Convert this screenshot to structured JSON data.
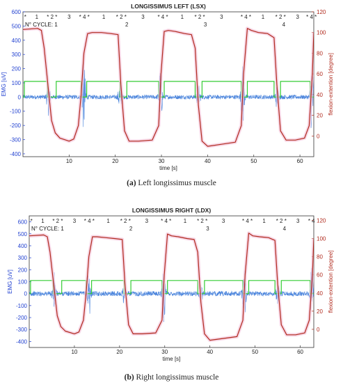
{
  "chart_data": [
    {
      "type": "line",
      "title": "LONGISSIMUS LEFT (LSX)",
      "xlabel": "time [s]",
      "ylabel_left": "EMG [uV]",
      "ylabel_right": "flexion-extention [degree]",
      "xlim": [
        0,
        63
      ],
      "ylim_left": [
        -420,
        600
      ],
      "ylim_right": [
        -20,
        120
      ],
      "xticks": [
        10,
        20,
        30,
        40,
        50,
        60
      ],
      "yticks_left": [
        -400,
        -300,
        -200,
        -100,
        0,
        100,
        200,
        300,
        400,
        500,
        600
      ],
      "yticks_right": [
        0,
        20,
        40,
        60,
        80,
        100,
        120
      ],
      "cycle_label": "N° CYCLE: 1",
      "cycle_numbers": [
        {
          "x": 22.5,
          "label": "2"
        },
        {
          "x": 39.5,
          "label": "3"
        },
        {
          "x": 56.5,
          "label": "4"
        }
      ],
      "phase_labels": [
        {
          "x": 0.5,
          "label": "*"
        },
        {
          "x": 3,
          "label": "1"
        },
        {
          "x": 6.3,
          "label": "* 2 *"
        },
        {
          "x": 10,
          "label": "3"
        },
        {
          "x": 13.3,
          "label": "* 4 *"
        },
        {
          "x": 17.5,
          "label": "1"
        },
        {
          "x": 21.3,
          "label": "* 2 *"
        },
        {
          "x": 26,
          "label": "3"
        },
        {
          "x": 30.3,
          "label": "* 4 *"
        },
        {
          "x": 34.5,
          "label": "1"
        },
        {
          "x": 38.3,
          "label": "* 2 *"
        },
        {
          "x": 43,
          "label": "3"
        },
        {
          "x": 48.3,
          "label": "* 4 *"
        },
        {
          "x": 52,
          "label": "1"
        },
        {
          "x": 55.8,
          "label": "* 2 *"
        },
        {
          "x": 59.5,
          "label": "3"
        },
        {
          "x": 62.5,
          "label": "* 4 *"
        }
      ],
      "angle_curve": {
        "name": "flexion-extention",
        "x": [
          0,
          3.2,
          4.0,
          4.6,
          5.4,
          6.2,
          7.0,
          8.0,
          10.0,
          11.0,
          12.0,
          12.6,
          13.2,
          14.0,
          15.0,
          17.0,
          19.0,
          20.6,
          21.2,
          22.0,
          23.0,
          25.0,
          28.0,
          29.4,
          29.9,
          30.6,
          31.5,
          33.0,
          35.0,
          36.5,
          37.3,
          38.0,
          38.8,
          40.0,
          43.0,
          46.0,
          47.3,
          47.8,
          48.6,
          49.5,
          51.0,
          53.0,
          54.4,
          55.0,
          55.8,
          57.0,
          59.0,
          61.0,
          62.0,
          62.7,
          63.0
        ],
        "y": [
          103,
          104,
          102,
          85,
          50,
          15,
          3,
          -2,
          -5,
          -3,
          10,
          40,
          80,
          99,
          100,
          100,
          99,
          98,
          50,
          5,
          -5,
          -5,
          -4,
          10,
          60,
          101,
          102,
          101,
          99,
          98,
          85,
          30,
          -5,
          -10,
          -8,
          -6,
          10,
          60,
          104,
          102,
          100,
          99,
          95,
          50,
          5,
          -4,
          -4,
          -2,
          10,
          60,
          100
        ]
      },
      "phase_markers": {
        "name": "phase",
        "low": 0,
        "high": 110,
        "intervals": [
          [
            0.3,
            5.3
          ],
          [
            7.2,
            12.6
          ],
          [
            13.8,
            21.0
          ],
          [
            22.5,
            29.4
          ],
          [
            30.6,
            37.3
          ],
          [
            38.8,
            47.3
          ],
          [
            48.6,
            54.4
          ],
          [
            55.8,
            62.2
          ]
        ]
      },
      "emg_bursts": [
        {
          "x": 5.5,
          "amplitude": 120
        },
        {
          "x": 13.2,
          "amplitude": 260
        },
        {
          "x": 21.0,
          "amplitude": 90
        },
        {
          "x": 29.8,
          "amplitude": 220
        },
        {
          "x": 38.0,
          "amplitude": 80
        },
        {
          "x": 47.6,
          "amplitude": 220
        },
        {
          "x": 55.0,
          "amplitude": 70
        },
        {
          "x": 62.6,
          "amplitude": 280
        }
      ],
      "emg_baseline": 15
    },
    {
      "type": "line",
      "title": "LONGISSIMUS RIGHT (LDX)",
      "xlabel": "time [s]",
      "ylabel_left": "EMG [uV]",
      "ylabel_right": "flexion-extention [degree]",
      "xlim": [
        0,
        63
      ],
      "ylim_left": [
        -450,
        650
      ],
      "ylim_right": [
        -20,
        125
      ],
      "xticks": [
        10,
        20,
        30,
        40,
        50,
        60
      ],
      "yticks_left": [
        -400,
        -300,
        -200,
        -100,
        0,
        100,
        200,
        300,
        400,
        500,
        600
      ],
      "yticks_right": [
        0,
        20,
        40,
        60,
        80,
        100,
        120
      ],
      "cycle_label": "N° CYCLE: 1",
      "cycle_numbers": [
        {
          "x": 22.5,
          "label": "2"
        },
        {
          "x": 39.5,
          "label": "3"
        },
        {
          "x": 56.5,
          "label": "4"
        }
      ],
      "phase_labels": [
        {
          "x": 0.5,
          "label": "*"
        },
        {
          "x": 3,
          "label": "1"
        },
        {
          "x": 6.3,
          "label": "* 2 *"
        },
        {
          "x": 10,
          "label": "3"
        },
        {
          "x": 13.3,
          "label": "* 4 *"
        },
        {
          "x": 17.5,
          "label": "1"
        },
        {
          "x": 21.3,
          "label": "* 2 *"
        },
        {
          "x": 26,
          "label": "3"
        },
        {
          "x": 30.3,
          "label": "* 4 *"
        },
        {
          "x": 34.5,
          "label": "1"
        },
        {
          "x": 38.3,
          "label": "* 2 *"
        },
        {
          "x": 43,
          "label": "3"
        },
        {
          "x": 48.3,
          "label": "* 4 *"
        },
        {
          "x": 52,
          "label": "1"
        },
        {
          "x": 55.8,
          "label": "* 2 *"
        },
        {
          "x": 59.5,
          "label": "3"
        },
        {
          "x": 62.5,
          "label": "* 4"
        }
      ],
      "angle_curve": {
        "name": "flexion-extention",
        "x": [
          0,
          3.2,
          4.0,
          4.6,
          5.4,
          6.2,
          7.0,
          8.0,
          10.0,
          11.0,
          12.0,
          12.6,
          13.2,
          14.0,
          15.0,
          17.0,
          19.0,
          20.6,
          21.2,
          22.0,
          23.0,
          25.0,
          28.0,
          29.4,
          29.9,
          30.6,
          31.5,
          33.0,
          35.0,
          36.5,
          37.3,
          38.0,
          38.8,
          40.0,
          43.0,
          46.0,
          47.3,
          47.8,
          48.6,
          49.5,
          51.0,
          53.0,
          54.4,
          55.0,
          55.8,
          57.0,
          59.0,
          61.0,
          62.0,
          62.7,
          63.0
        ],
        "y": [
          103,
          104,
          102,
          85,
          50,
          15,
          3,
          -2,
          -5,
          -3,
          10,
          40,
          80,
          102,
          102,
          101,
          100,
          99,
          50,
          5,
          -5,
          -5,
          -4,
          10,
          60,
          105,
          103,
          102,
          100,
          99,
          85,
          30,
          -5,
          -12,
          -10,
          -8,
          10,
          60,
          106,
          103,
          102,
          101,
          98,
          50,
          5,
          -6,
          -6,
          -4,
          10,
          60,
          100
        ]
      },
      "phase_markers": {
        "name": "phase",
        "low": 0,
        "high": 110,
        "intervals": [
          [
            0.3,
            5.3
          ],
          [
            7.2,
            12.6
          ],
          [
            13.8,
            21.0
          ],
          [
            22.5,
            29.4
          ],
          [
            30.6,
            37.3
          ],
          [
            38.8,
            47.3
          ],
          [
            48.6,
            54.4
          ],
          [
            55.8,
            62.2
          ]
        ]
      },
      "emg_bursts": [
        {
          "x": 5.5,
          "amplitude": 160
        },
        {
          "x": 13.2,
          "amplitude": 240
        },
        {
          "x": 21.0,
          "amplitude": 90
        },
        {
          "x": 29.8,
          "amplitude": 230
        },
        {
          "x": 38.0,
          "amplitude": 80
        },
        {
          "x": 47.6,
          "amplitude": 230
        },
        {
          "x": 55.0,
          "amplitude": 70
        },
        {
          "x": 62.6,
          "amplitude": 260
        }
      ],
      "emg_baseline": 20
    }
  ],
  "captions": [
    {
      "tag": "(a)",
      "text": "Left longissimus muscle"
    },
    {
      "tag": "(b)",
      "text": "Right longissimus muscle"
    }
  ],
  "colors": {
    "emg": "#2a6fd6",
    "angle": "#b0291c",
    "phase": "#33cc33",
    "left_axis": "#1f3fd0",
    "right_axis": "#b0291c",
    "halo": "#f4c6dc"
  }
}
